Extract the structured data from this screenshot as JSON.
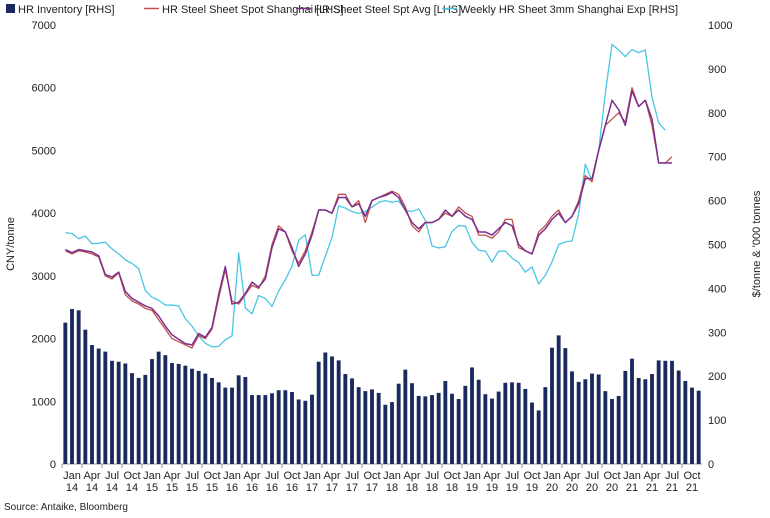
{
  "chart_data": {
    "type": "bar+line",
    "title": "",
    "colors": {
      "inventory": "#1b2a5e",
      "spot": "#c0504d",
      "avg": "#7b2f8e",
      "weekly": "#49c6e5"
    },
    "legend": {
      "position": "top",
      "entries": [
        {
          "key": "inventory",
          "label": "HR Inventory [RHS]",
          "marker": "square"
        },
        {
          "key": "spot",
          "label": "HR Steel Sheet Spot Shanghai [LHS]",
          "marker": "line"
        },
        {
          "key": "avg",
          "label": "HR Sheet Steel Spt Avg [LHS]",
          "marker": "line"
        },
        {
          "key": "weekly",
          "label": "Weekly HR Sheet 3mm Shanghai Exp [RHS]",
          "marker": "line"
        }
      ]
    },
    "left_axis": {
      "label": "CNY/tonne",
      "min": 0,
      "max": 7000,
      "ticks": [
        0,
        1000,
        2000,
        3000,
        4000,
        5000,
        6000,
        7000
      ]
    },
    "right_axis": {
      "label": "$/tonne & '000 tonnes",
      "min": 0,
      "max": 1000,
      "ticks": [
        0,
        100,
        200,
        300,
        400,
        500,
        600,
        700,
        800,
        900,
        1000
      ]
    },
    "x_labels": [
      {
        "month": "Jan",
        "year": "14"
      },
      {
        "month": "Apr",
        "year": "14"
      },
      {
        "month": "Jul",
        "year": "14"
      },
      {
        "month": "Oct",
        "year": "14"
      },
      {
        "month": "Jan",
        "year": "15"
      },
      {
        "month": "Apr",
        "year": "15"
      },
      {
        "month": "Jul",
        "year": "15"
      },
      {
        "month": "Oct",
        "year": "15"
      },
      {
        "month": "Jan",
        "year": "16"
      },
      {
        "month": "Apr",
        "year": "16"
      },
      {
        "month": "Jul",
        "year": "16"
      },
      {
        "month": "Oct",
        "year": "16"
      },
      {
        "month": "Jan",
        "year": "17"
      },
      {
        "month": "Apr",
        "year": "17"
      },
      {
        "month": "Jul",
        "year": "17"
      },
      {
        "month": "Oct",
        "year": "17"
      },
      {
        "month": "Jan",
        "year": "18"
      },
      {
        "month": "Apr",
        "year": "18"
      },
      {
        "month": "Jul",
        "year": "18"
      },
      {
        "month": "Oct",
        "year": "18"
      },
      {
        "month": "Jan",
        "year": "19"
      },
      {
        "month": "Apr",
        "year": "19"
      },
      {
        "month": "Jul",
        "year": "19"
      },
      {
        "month": "Oct",
        "year": "19"
      },
      {
        "month": "Jan",
        "year": "20"
      },
      {
        "month": "Apr",
        "year": "20"
      },
      {
        "month": "Jul",
        "year": "20"
      },
      {
        "month": "Oct",
        "year": "20"
      },
      {
        "month": "Jan",
        "year": "21"
      },
      {
        "month": "Apr",
        "year": "21"
      },
      {
        "month": "Jul",
        "year": "21"
      },
      {
        "month": "Oct",
        "year": "21"
      }
    ],
    "inventory_rhs": [
      322,
      353,
      350,
      306,
      271,
      263,
      256,
      235,
      233,
      229,
      207,
      196,
      203,
      239,
      256,
      248,
      230,
      228,
      224,
      217,
      212,
      206,
      196,
      186,
      174,
      174,
      202,
      198,
      157,
      157,
      157,
      161,
      168,
      168,
      164,
      147,
      144,
      158,
      233,
      254,
      245,
      236,
      205,
      195,
      175,
      166,
      170,
      162,
      135,
      141,
      183,
      215,
      184,
      155,
      154,
      157,
      162,
      189,
      160,
      148,
      178,
      220,
      192,
      159,
      149,
      165,
      185,
      186,
      185,
      171,
      140,
      122,
      175,
      265,
      293,
      264,
      211,
      187,
      193,
      206,
      204,
      166,
      148,
      155,
      212,
      240,
      196,
      193,
      205,
      236,
      235,
      235,
      213,
      189,
      174,
      167
    ],
    "spot_lhs": [
      3400,
      3350,
      3400,
      3380,
      3350,
      3300,
      3000,
      2950,
      3050,
      2700,
      2600,
      2550,
      2480,
      2450,
      2300,
      2150,
      2000,
      1950,
      1900,
      1850,
      2050,
      2000,
      2150,
      2650,
      3100,
      2600,
      2550,
      2700,
      2850,
      2800,
      3000,
      3500,
      3800,
      3700,
      3400,
      3200,
      3400,
      3700,
      4050,
      4050,
      4000,
      4300,
      4300,
      4100,
      4200,
      3850,
      4200,
      4250,
      4300,
      4350,
      4300,
      4100,
      3800,
      3700,
      3850,
      3850,
      3900,
      4000,
      3950,
      4100,
      4000,
      3950,
      3650,
      3650,
      3600,
      3700,
      3900,
      3900,
      3450,
      3400,
      3350,
      3700,
      3800,
      3950,
      4050,
      3850,
      3950,
      4200,
      4600,
      4500,
      5000,
      5400,
      5500,
      5600,
      5450,
      6000,
      5700,
      5800,
      5400,
      4800,
      4800,
      4900
    ],
    "avg_lhs": [
      3420,
      3370,
      3420,
      3400,
      3380,
      3320,
      3020,
      2980,
      3060,
      2750,
      2640,
      2580,
      2520,
      2480,
      2360,
      2200,
      2060,
      1990,
      1920,
      1900,
      2080,
      2020,
      2180,
      2700,
      3150,
      2550,
      2580,
      2720,
      2900,
      2820,
      2950,
      3450,
      3750,
      3700,
      3450,
      3150,
      3350,
      3650,
      4050,
      4050,
      4000,
      4250,
      4250,
      4100,
      4150,
      3950,
      4200,
      4250,
      4280,
      4330,
      4250,
      4050,
      3850,
      3750,
      3850,
      3850,
      3900,
      4050,
      3950,
      4050,
      3950,
      3900,
      3700,
      3700,
      3650,
      3750,
      3850,
      3800,
      3500,
      3400,
      3350,
      3650,
      3750,
      3900,
      4000,
      3850,
      3950,
      4150,
      4550,
      4550,
      5000,
      5400,
      5800,
      5650,
      5400,
      5950,
      5700,
      5800,
      5500,
      4800,
      4800,
      4800
    ],
    "weekly_rhs": [
      527,
      525,
      513,
      519,
      502,
      503,
      505,
      490,
      479,
      465,
      457,
      445,
      395,
      380,
      373,
      362,
      362,
      360,
      331,
      314,
      292,
      275,
      267,
      268,
      283,
      292,
      481,
      356,
      342,
      384,
      377,
      359,
      394,
      420,
      450,
      510,
      522,
      430,
      430,
      473,
      516,
      588,
      583,
      575,
      571,
      575,
      585,
      596,
      600,
      596,
      599,
      578,
      575,
      581,
      555,
      497,
      492,
      495,
      530,
      543,
      542,
      505,
      487,
      485,
      460,
      485,
      485,
      469,
      459,
      437,
      449,
      410,
      430,
      460,
      500,
      506,
      508,
      570,
      683,
      645,
      714,
      845,
      956,
      943,
      928,
      944,
      937,
      943,
      836,
      777,
      760
    ]
  },
  "source": "Source: Antaike, Bloomberg"
}
